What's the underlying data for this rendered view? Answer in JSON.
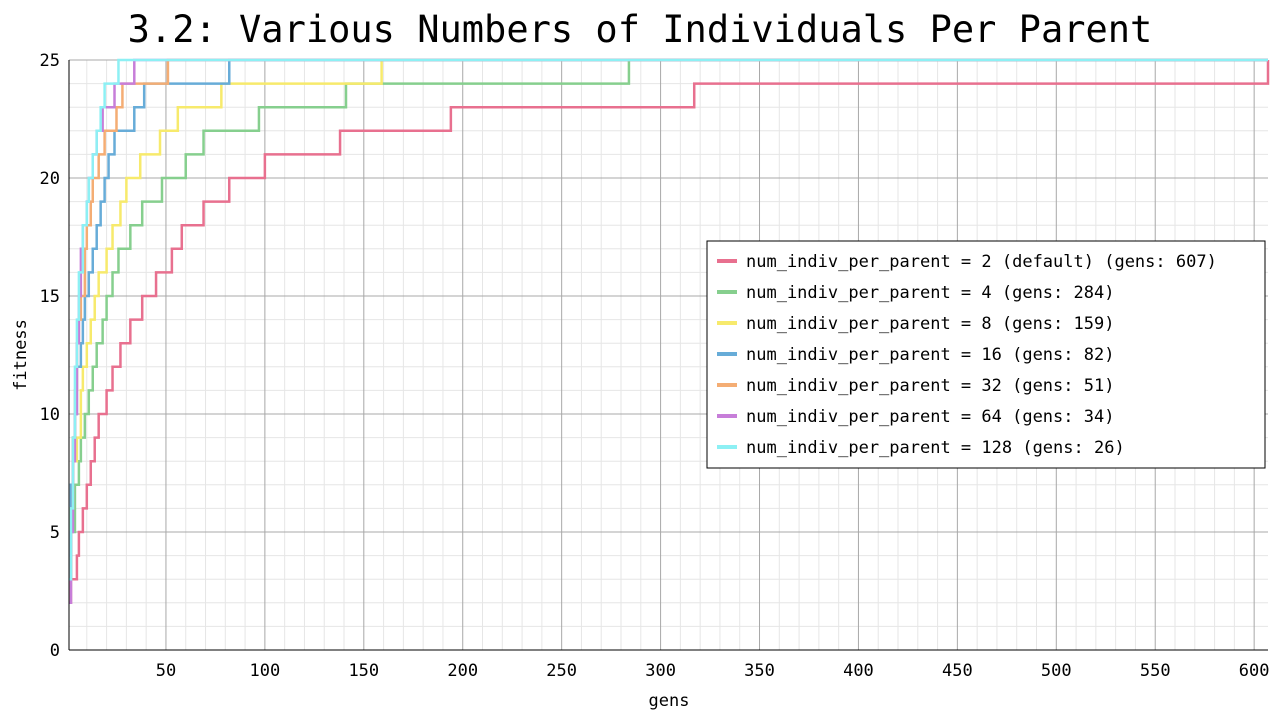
{
  "chart_data": {
    "type": "line",
    "title": "3.2: Various Numbers of Individuals Per Parent",
    "xlabel": "gens",
    "ylabel": "fitness",
    "xlim": [
      1,
      607
    ],
    "ylim": [
      0,
      25
    ],
    "x_ticks": [
      50,
      100,
      150,
      200,
      250,
      300,
      350,
      400,
      450,
      500,
      550,
      600
    ],
    "y_ticks": [
      0,
      5,
      10,
      15,
      20,
      25
    ],
    "grid": true,
    "legend_position": "right",
    "series": [
      {
        "name": "num_indiv_per_parent = 2 (default) (gens: 607)",
        "color": "#e8708f",
        "steps": [
          [
            1,
            2
          ],
          [
            2,
            3
          ],
          [
            5,
            4
          ],
          [
            6,
            5
          ],
          [
            8,
            6
          ],
          [
            10,
            7
          ],
          [
            12,
            8
          ],
          [
            14,
            9
          ],
          [
            16,
            10
          ],
          [
            20,
            11
          ],
          [
            23,
            12
          ],
          [
            27,
            13
          ],
          [
            32,
            14
          ],
          [
            38,
            15
          ],
          [
            45,
            16
          ],
          [
            53,
            17
          ],
          [
            58,
            18
          ],
          [
            69,
            19
          ],
          [
            82,
            20
          ],
          [
            100,
            21
          ],
          [
            138,
            22
          ],
          [
            194,
            23
          ],
          [
            317,
            24
          ],
          [
            607,
            25
          ]
        ]
      },
      {
        "name": "num_indiv_per_parent = 4 (gens: 284)",
        "color": "#86cf8e",
        "steps": [
          [
            1,
            3
          ],
          [
            2,
            5
          ],
          [
            4,
            7
          ],
          [
            6,
            8
          ],
          [
            7,
            9
          ],
          [
            9,
            10
          ],
          [
            11,
            11
          ],
          [
            13,
            12
          ],
          [
            15,
            13
          ],
          [
            18,
            14
          ],
          [
            20,
            15
          ],
          [
            23,
            16
          ],
          [
            26,
            17
          ],
          [
            32,
            18
          ],
          [
            38,
            19
          ],
          [
            48,
            20
          ],
          [
            60,
            21
          ],
          [
            69,
            22
          ],
          [
            97,
            23
          ],
          [
            141,
            24
          ],
          [
            284,
            25
          ]
        ]
      },
      {
        "name": "num_indiv_per_parent = 8 (gens: 159)",
        "color": "#f7ea6c",
        "steps": [
          [
            1,
            3
          ],
          [
            2,
            6
          ],
          [
            3,
            8
          ],
          [
            5,
            9
          ],
          [
            7,
            11
          ],
          [
            8,
            12
          ],
          [
            10,
            13
          ],
          [
            12,
            14
          ],
          [
            14,
            15
          ],
          [
            16,
            16
          ],
          [
            20,
            17
          ],
          [
            23,
            18
          ],
          [
            27,
            19
          ],
          [
            30,
            20
          ],
          [
            37,
            21
          ],
          [
            47,
            22
          ],
          [
            56,
            23
          ],
          [
            78,
            24
          ],
          [
            159,
            25
          ]
        ]
      },
      {
        "name": "num_indiv_per_parent = 16 (gens: 82)",
        "color": "#67acd8",
        "steps": [
          [
            1,
            4
          ],
          [
            2,
            7
          ],
          [
            3,
            9
          ],
          [
            4,
            10
          ],
          [
            5,
            12
          ],
          [
            7,
            13
          ],
          [
            8,
            14
          ],
          [
            9,
            15
          ],
          [
            11,
            16
          ],
          [
            13,
            17
          ],
          [
            15,
            18
          ],
          [
            17,
            19
          ],
          [
            19,
            20
          ],
          [
            21,
            21
          ],
          [
            24,
            22
          ],
          [
            34,
            23
          ],
          [
            39,
            24
          ],
          [
            82,
            25
          ]
        ]
      },
      {
        "name": "num_indiv_per_parent = 32 (gens: 51)",
        "color": "#f4ad74",
        "steps": [
          [
            1,
            3
          ],
          [
            2,
            6
          ],
          [
            3,
            9
          ],
          [
            4,
            11
          ],
          [
            5,
            13
          ],
          [
            6,
            14
          ],
          [
            7,
            15
          ],
          [
            9,
            17
          ],
          [
            10,
            18
          ],
          [
            12,
            19
          ],
          [
            13,
            20
          ],
          [
            16,
            21
          ],
          [
            19,
            22
          ],
          [
            25,
            23
          ],
          [
            28,
            24
          ],
          [
            51,
            25
          ]
        ]
      },
      {
        "name": "num_indiv_per_parent = 64 (gens: 34)",
        "color": "#c77ed9",
        "steps": [
          [
            1,
            2
          ],
          [
            2,
            5
          ],
          [
            3,
            8
          ],
          [
            4,
            10
          ],
          [
            5,
            13
          ],
          [
            6,
            15
          ],
          [
            7,
            17
          ],
          [
            8,
            18
          ],
          [
            10,
            19
          ],
          [
            11,
            20
          ],
          [
            13,
            21
          ],
          [
            15,
            22
          ],
          [
            18,
            23
          ],
          [
            24,
            24
          ],
          [
            34,
            25
          ]
        ]
      },
      {
        "name": "num_indiv_per_parent = 128 (gens: 26)",
        "color": "#8df0f4",
        "steps": [
          [
            1,
            3
          ],
          [
            2,
            6
          ],
          [
            3,
            9
          ],
          [
            4,
            12
          ],
          [
            5,
            14
          ],
          [
            6,
            16
          ],
          [
            8,
            18
          ],
          [
            10,
            19
          ],
          [
            11,
            20
          ],
          [
            13,
            21
          ],
          [
            15,
            22
          ],
          [
            17,
            23
          ],
          [
            19,
            24
          ],
          [
            26,
            25
          ]
        ]
      }
    ]
  }
}
